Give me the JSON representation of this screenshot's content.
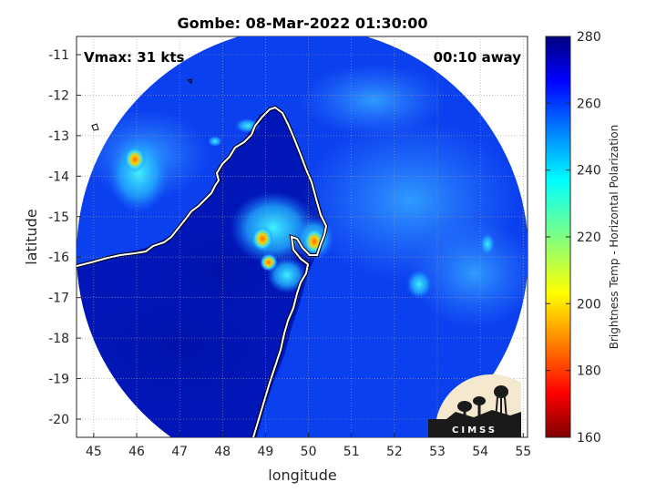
{
  "title": "Gombe: 08-Mar-2022 01:30:00",
  "vmax_label": "Vmax: 31 kts",
  "time_away_label": "00:10 away",
  "axes": {
    "xlabel": "longitude",
    "ylabel": "latitude",
    "xlim": [
      44.6,
      55.1
    ],
    "ylim": [
      -20.45,
      -10.55
    ],
    "xticks": [
      "45",
      "46",
      "47",
      "48",
      "49",
      "50",
      "51",
      "52",
      "53",
      "54",
      "55"
    ],
    "yticks": [
      "-11",
      "-12",
      "-13",
      "-14",
      "-15",
      "-16",
      "-17",
      "-18",
      "-19",
      "-20"
    ],
    "grid": true
  },
  "colorbar": {
    "label": "Brightness Temp - Horizontal Polarization",
    "range": [
      160,
      280
    ],
    "ticks": [
      "280",
      "260",
      "240",
      "220",
      "200",
      "180",
      "160"
    ],
    "colormap": "jet"
  },
  "logo_text": "CIMSS",
  "storm_center": {
    "lon": 50.0,
    "lat": -15.4
  }
}
